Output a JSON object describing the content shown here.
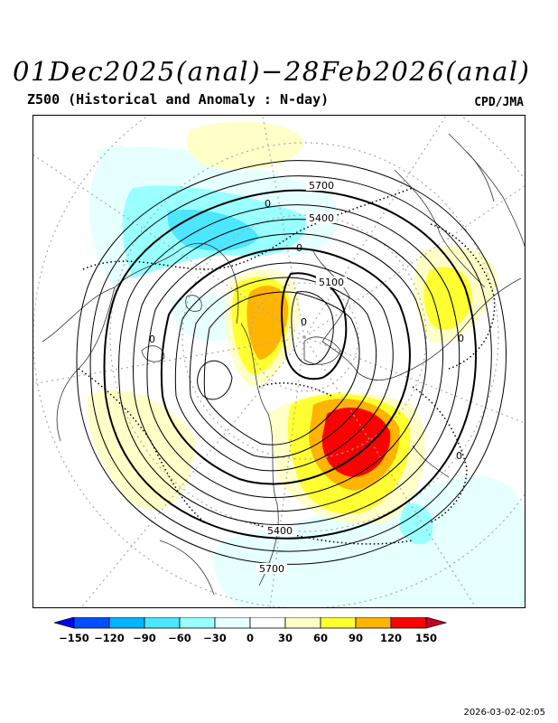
{
  "title": "01Dec2025(anal)−28Feb2026(anal)",
  "subtitle": "Z500 (Historical and Anomaly : N-day)",
  "credit": "CPD/JMA",
  "timestamp": "2026-03-02-02:05",
  "contour_labels": {
    "h5700_top": "5700",
    "h5400_top": "5400",
    "h5100": "5100",
    "h5400_bottom": "5400",
    "h5700_bottom": "5700",
    "zero_labels": [
      "0",
      "0",
      "0",
      "0",
      "0",
      "0"
    ]
  },
  "colorbar": {
    "ticks": [
      "−150",
      "−120",
      "−90",
      "−60",
      "−30",
      "0",
      "30",
      "60",
      "90",
      "120",
      "150"
    ],
    "colors": [
      "#0000ff",
      "#0050ff",
      "#00b4ff",
      "#4ce6ff",
      "#99ffff",
      "#e6ffff",
      "#ffffff",
      "#ffffc8",
      "#ffff32",
      "#ffb400",
      "#ff0000",
      "#c80028"
    ]
  },
  "colors": {
    "positive_strong": "#ff0000",
    "positive_mid": "#ffb400",
    "positive_weak": "#ffff32",
    "negative_weak": "#e6ffff",
    "negative_mid": "#4ce6ff"
  }
}
